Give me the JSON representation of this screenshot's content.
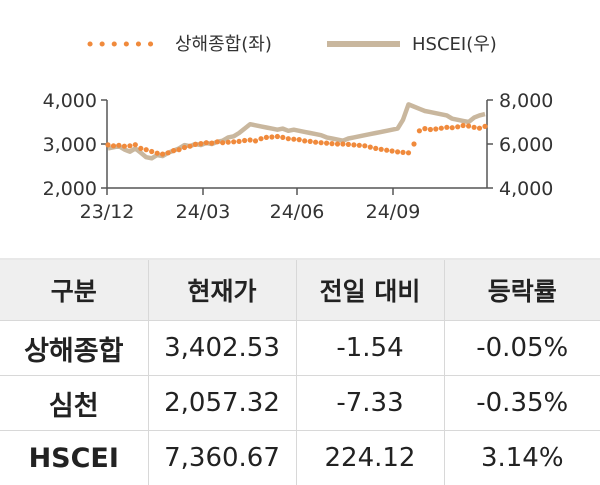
{
  "chart_data": {
    "type": "line",
    "x_labels": [
      "23/12",
      "24/03",
      "24/06",
      "24/09"
    ],
    "y_left": {
      "ticks": [
        "4,000",
        "3,000",
        "2,000"
      ],
      "range": [
        2000,
        4000
      ]
    },
    "y_right": {
      "ticks": [
        "8,000",
        "6,000",
        "4,000"
      ],
      "range": [
        4000,
        8000
      ]
    },
    "legend_position": "top-center",
    "series": [
      {
        "name": "상해종합(좌)",
        "axis": "left",
        "style": "dotted",
        "color": "#f08a3c",
        "values": [
          2980,
          2960,
          2970,
          2950,
          2960,
          2985,
          2900,
          2870,
          2830,
          2790,
          2770,
          2800,
          2850,
          2870,
          2920,
          2950,
          2990,
          3010,
          3030,
          3020,
          3050,
          3030,
          3040,
          3050,
          3060,
          3080,
          3090,
          3070,
          3120,
          3150,
          3160,
          3170,
          3150,
          3120,
          3110,
          3100,
          3070,
          3060,
          3040,
          3030,
          3020,
          3010,
          3000,
          3000,
          2990,
          2980,
          2970,
          2960,
          2930,
          2900,
          2880,
          2860,
          2840,
          2820,
          2810,
          2800,
          3000,
          3300,
          3350,
          3330,
          3340,
          3360,
          3380,
          3370,
          3390,
          3420,
          3410,
          3380,
          3360,
          3400
        ]
      },
      {
        "name": "HSCEI(우)",
        "axis": "right",
        "style": "solid",
        "color": "#c9b79e",
        "values": [
          5800,
          5850,
          5900,
          5750,
          5650,
          5800,
          5600,
          5400,
          5350,
          5500,
          5450,
          5600,
          5700,
          5800,
          5950,
          5900,
          6000,
          5950,
          6050,
          6000,
          6100,
          6150,
          6300,
          6350,
          6500,
          6700,
          6900,
          6850,
          6800,
          6750,
          6700,
          6650,
          6700,
          6600,
          6650,
          6600,
          6550,
          6500,
          6450,
          6400,
          6300,
          6250,
          6200,
          6150,
          6250,
          6300,
          6350,
          6400,
          6450,
          6500,
          6550,
          6600,
          6650,
          6700,
          7100,
          7800,
          7700,
          7600,
          7500,
          7450,
          7400,
          7350,
          7300,
          7150,
          7100,
          7050,
          7000,
          7200,
          7300,
          7360
        ]
      }
    ]
  },
  "table": {
    "headers": [
      "구분",
      "현재가",
      "전일 대비",
      "등락률"
    ],
    "rows": [
      [
        "상해종합",
        "3,402.53",
        "-1.54",
        "-0.05%"
      ],
      [
        "심천",
        "2,057.32",
        "-7.33",
        "-0.35%"
      ],
      [
        "HSCEI",
        "7,360.67",
        "224.12",
        "3.14%"
      ]
    ]
  }
}
